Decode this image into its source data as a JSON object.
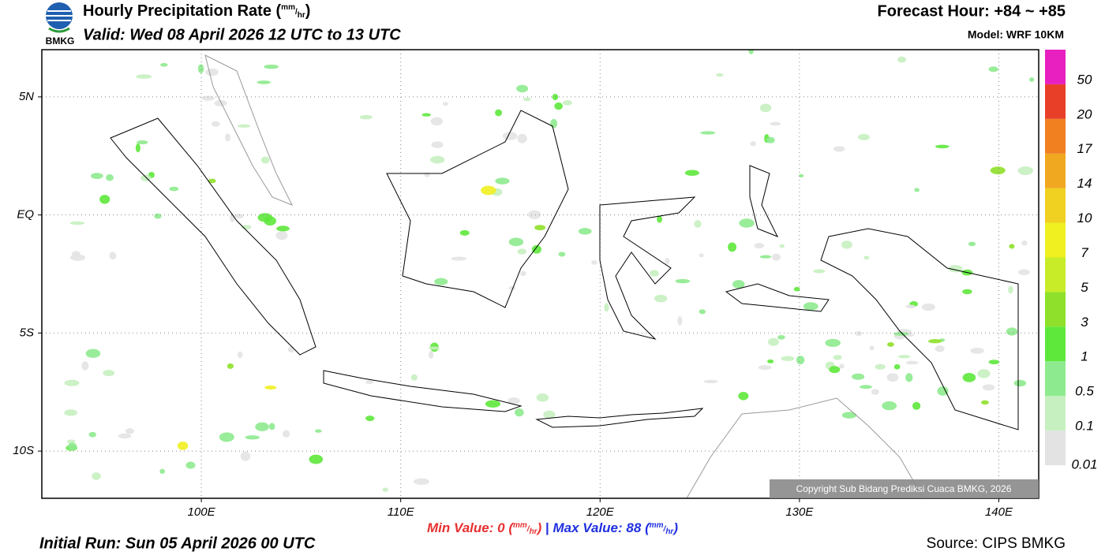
{
  "header": {
    "logo_text": "BMKG",
    "title": "Hourly Precipitation Rate",
    "unit": {
      "open": "(",
      "num": "mm",
      "slash": "/",
      "den": "hr",
      "close": ")"
    },
    "valid": "Valid: Wed 08 April 2026 12 UTC to 13 UTC",
    "forecast_hour": "Forecast Hour: +84 ~ +85",
    "model": "Model: WRF 10KM"
  },
  "map": {
    "xlim": [
      92,
      142
    ],
    "ylim": [
      -12,
      7
    ],
    "xticks": [
      {
        "value": 100,
        "label": "100E"
      },
      {
        "value": 110,
        "label": "110E"
      },
      {
        "value": 120,
        "label": "120E"
      },
      {
        "value": 130,
        "label": "130E"
      },
      {
        "value": 140,
        "label": "140E"
      }
    ],
    "yticks": [
      {
        "value": 5,
        "label": "5N"
      },
      {
        "value": 0,
        "label": "EQ"
      },
      {
        "value": -5,
        "label": "5S"
      },
      {
        "value": -10,
        "label": "10S"
      }
    ],
    "grid": true,
    "copyright": "Copyright Sub Bidang Prediksi Cuaca BMKG, 2026"
  },
  "colorbar": {
    "levels": [
      0.01,
      0.1,
      0.5,
      1,
      3,
      5,
      7,
      10,
      14,
      17,
      20,
      50
    ],
    "colors": [
      "#e3e3e3",
      "#c6f0c0",
      "#8eea8e",
      "#5ee83c",
      "#8fe02a",
      "#c8ec28",
      "#f0f020",
      "#f0d020",
      "#f0a820",
      "#f08020",
      "#e84028",
      "#e820c0"
    ]
  },
  "stats": {
    "min": {
      "label": "Min Value:",
      "value": 0
    },
    "separator": "|",
    "max": {
      "label": "Max Value:",
      "value": 88
    }
  },
  "footer": {
    "initial_run": "Initial Run: Sun 05 April 2026 00 UTC",
    "source": "Source: CIPS BMKG"
  }
}
